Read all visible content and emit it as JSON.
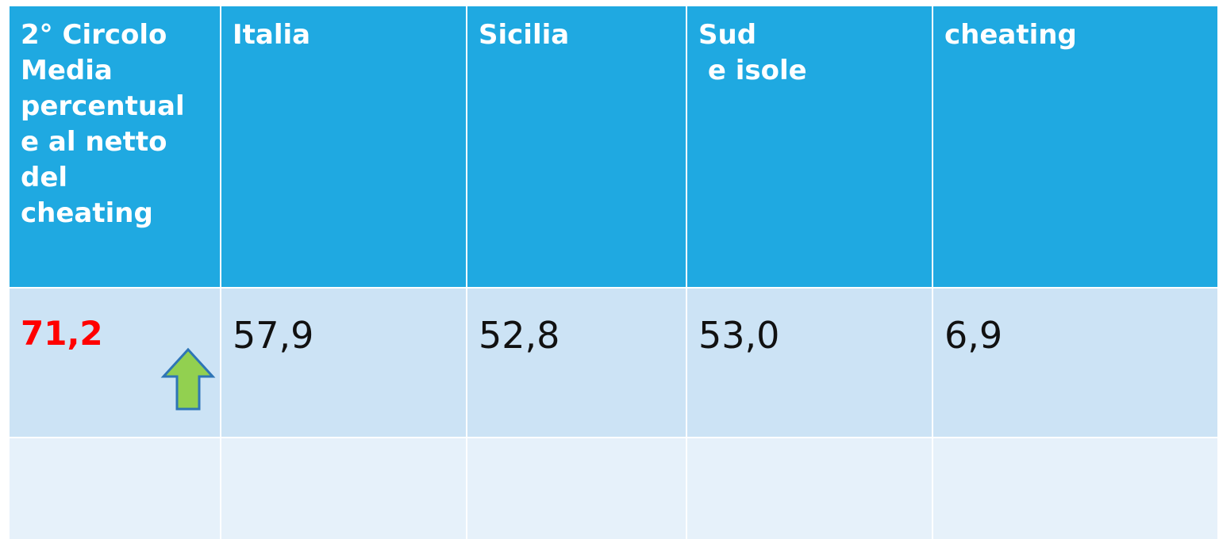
{
  "table": {
    "header": [
      [
        "2° Circolo",
        "Media",
        "percentual",
        "e al netto",
        "del",
        "cheating"
      ],
      [
        "Italia"
      ],
      [
        "Sicilia"
      ],
      [
        "Sud",
        " e isole"
      ],
      [
        "cheating"
      ]
    ],
    "rows": [
      [
        "71,2",
        "57,9",
        "52,8",
        "53,0",
        "6,9"
      ]
    ]
  }
}
